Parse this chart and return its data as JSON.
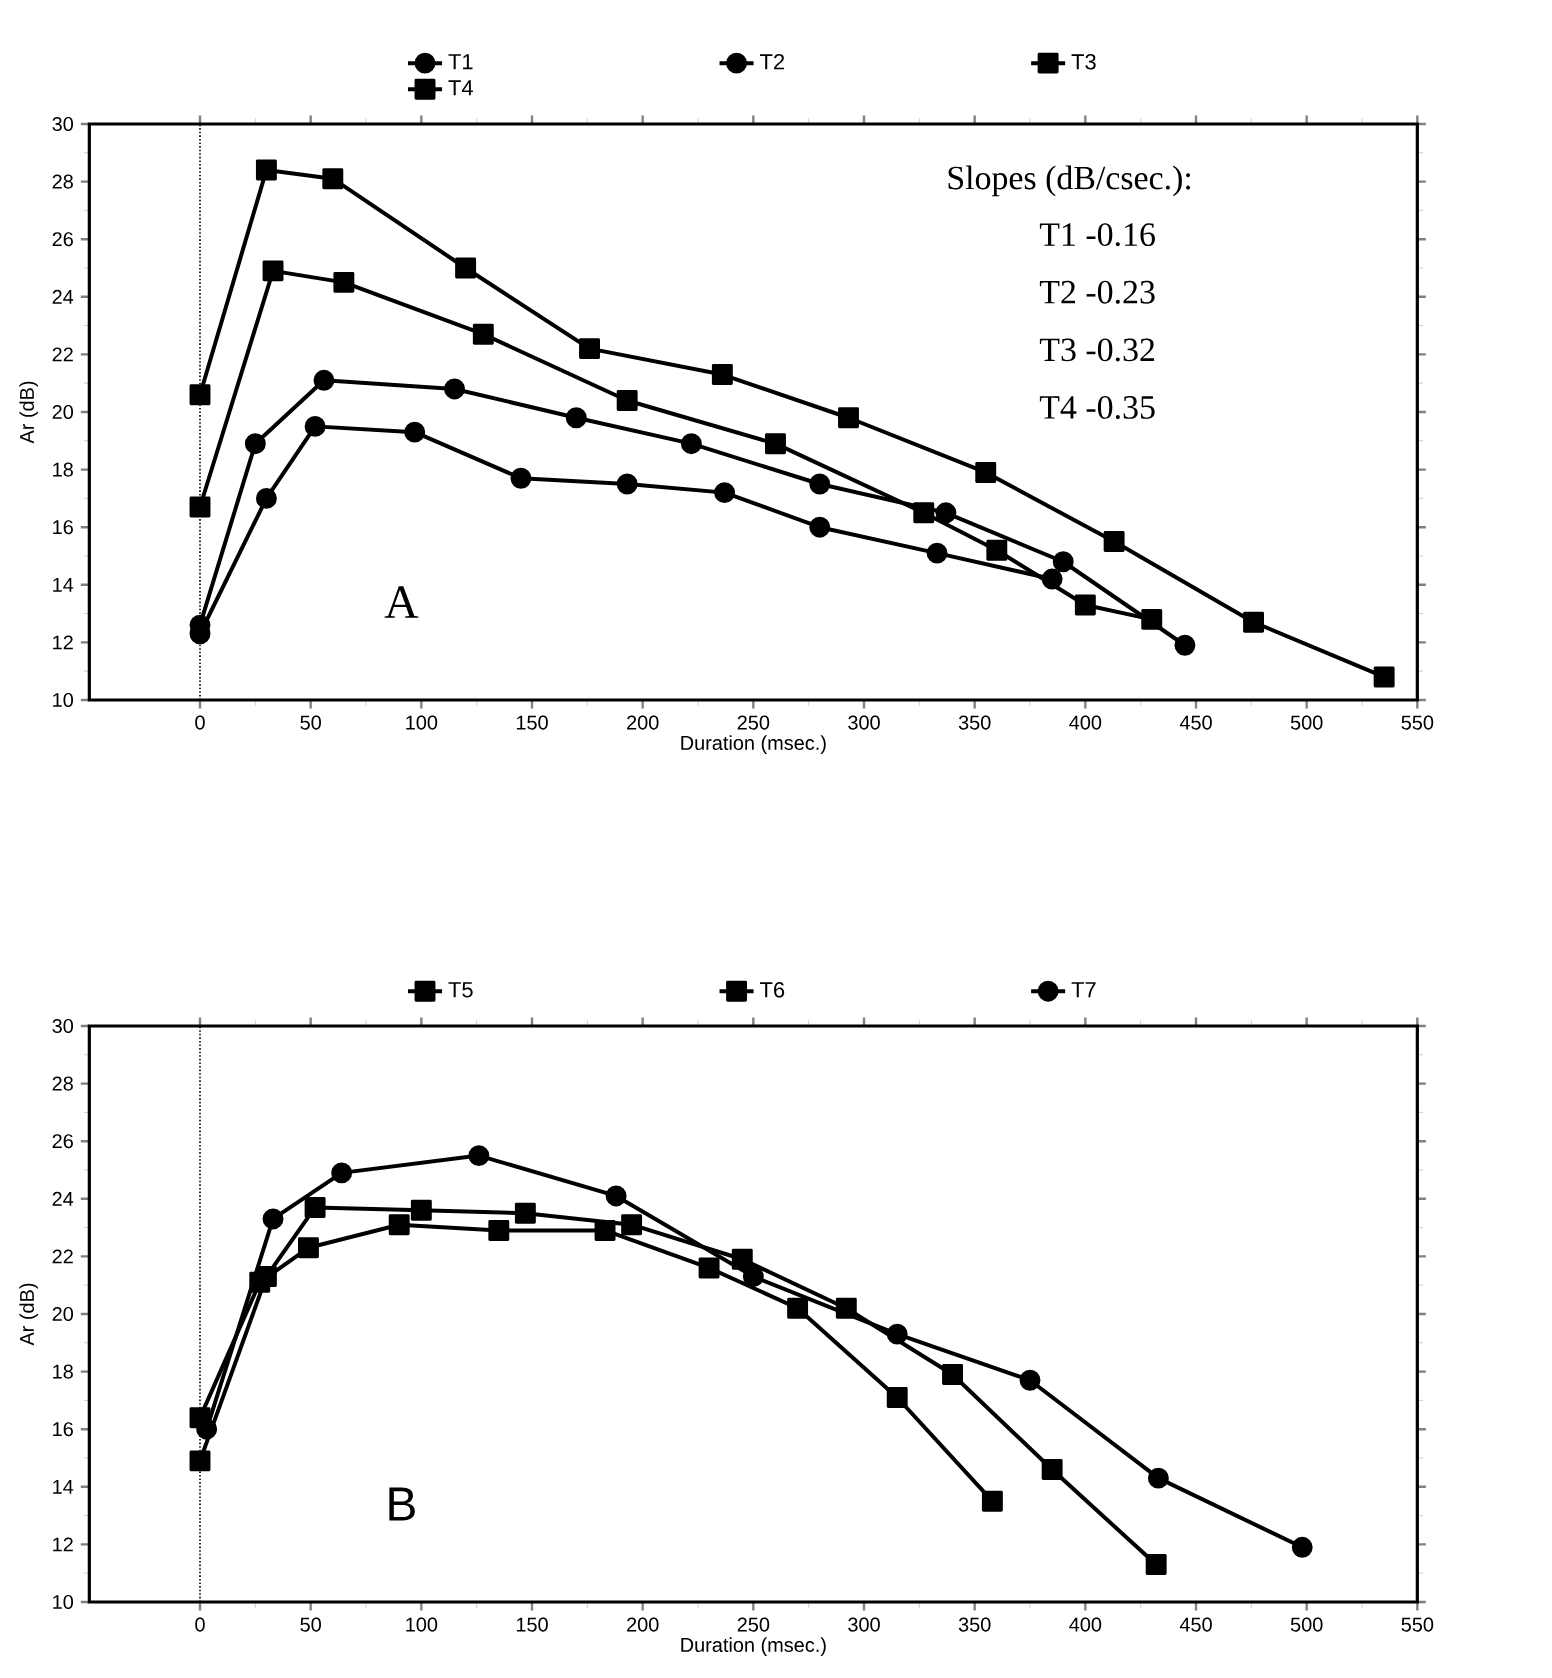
{
  "chart_data": [
    {
      "type": "line",
      "xlabel": "Duration (msec.)",
      "ylabel": "Ar  (dB)",
      "xlim": [
        -50,
        550
      ],
      "xticks": [
        0,
        50,
        100,
        150,
        200,
        250,
        300,
        350,
        400,
        450,
        500,
        550
      ],
      "ylim": [
        10,
        30
      ],
      "yticks": [
        10,
        12,
        14,
        16,
        18,
        20,
        22,
        24,
        26,
        28,
        30
      ],
      "legend": "top",
      "line_style": "solid",
      "annotations": [
        "Slopes (dB/csec.):",
        "T1 -0.16",
        "T2 -0.23",
        "T3 -0.32",
        "T4 -0.35",
        "A"
      ],
      "ref_lines": [
        {
          "axis": "x",
          "value": 0,
          "line_style": "dotted",
          "color": "#000000"
        }
      ],
      "series": [
        {
          "name": "T1",
          "color": "#000000",
          "marker": "circle",
          "x": [
            0,
            30,
            52,
            97,
            145,
            193,
            237,
            280,
            333,
            385
          ],
          "values": [
            12.3,
            17.0,
            19.5,
            19.3,
            17.7,
            17.5,
            17.2,
            16.0,
            15.1,
            14.2
          ]
        },
        {
          "name": "T2",
          "color": "#000000",
          "marker": "circle",
          "x": [
            0,
            25,
            56,
            115,
            170,
            222,
            280,
            337,
            390,
            445
          ],
          "values": [
            12.6,
            18.9,
            21.1,
            20.8,
            19.8,
            18.9,
            17.5,
            16.5,
            14.8,
            11.9
          ]
        },
        {
          "name": "T3",
          "color": "#000000",
          "marker": "square",
          "x": [
            0,
            33,
            65,
            128,
            193,
            260,
            327,
            360,
            400,
            430
          ],
          "values": [
            16.7,
            24.9,
            24.5,
            22.7,
            20.4,
            18.9,
            16.5,
            15.2,
            13.3,
            12.8
          ]
        },
        {
          "name": "T4",
          "color": "#000000",
          "marker": "square",
          "x": [
            0,
            30,
            60,
            120,
            176,
            236,
            293,
            355,
            413,
            476,
            535
          ],
          "values": [
            20.6,
            28.4,
            28.1,
            25.0,
            22.2,
            21.3,
            19.8,
            17.9,
            15.5,
            12.7,
            10.8
          ]
        }
      ]
    },
    {
      "type": "line",
      "xlabel": "Duration (msec.)",
      "ylabel": "Ar  (dB)",
      "xlim": [
        -50,
        550
      ],
      "xticks": [
        0,
        50,
        100,
        150,
        200,
        250,
        300,
        350,
        400,
        450,
        500,
        550
      ],
      "ylim": [
        10,
        30
      ],
      "yticks": [
        10,
        12,
        14,
        16,
        18,
        20,
        22,
        24,
        26,
        28,
        30
      ],
      "legend": "top",
      "line_style": "solid",
      "annotations": [
        "B"
      ],
      "ref_lines": [
        {
          "axis": "x",
          "value": 0,
          "line_style": "dotted",
          "color": "#000000"
        }
      ],
      "series": [
        {
          "name": "T5",
          "color": "#000000",
          "marker": "square",
          "x": [
            0,
            27,
            49,
            90,
            135,
            183,
            230,
            270,
            315,
            358
          ],
          "values": [
            16.4,
            21.1,
            22.3,
            23.1,
            22.9,
            22.9,
            21.6,
            20.2,
            17.1,
            13.5
          ]
        },
        {
          "name": "T6",
          "color": "#000000",
          "marker": "square",
          "x": [
            0,
            30,
            52,
            100,
            147,
            195,
            245,
            292,
            340,
            385,
            432
          ],
          "values": [
            14.9,
            21.3,
            23.7,
            23.6,
            23.5,
            23.1,
            21.9,
            20.2,
            17.9,
            14.6,
            11.3
          ]
        },
        {
          "name": "T7",
          "color": "#000000",
          "marker": "circle",
          "x": [
            3,
            33,
            64,
            126,
            188,
            250,
            315,
            375,
            433,
            498
          ],
          "values": [
            16.0,
            23.3,
            24.9,
            25.5,
            24.1,
            21.3,
            19.3,
            17.7,
            14.3,
            11.9
          ]
        }
      ]
    }
  ]
}
